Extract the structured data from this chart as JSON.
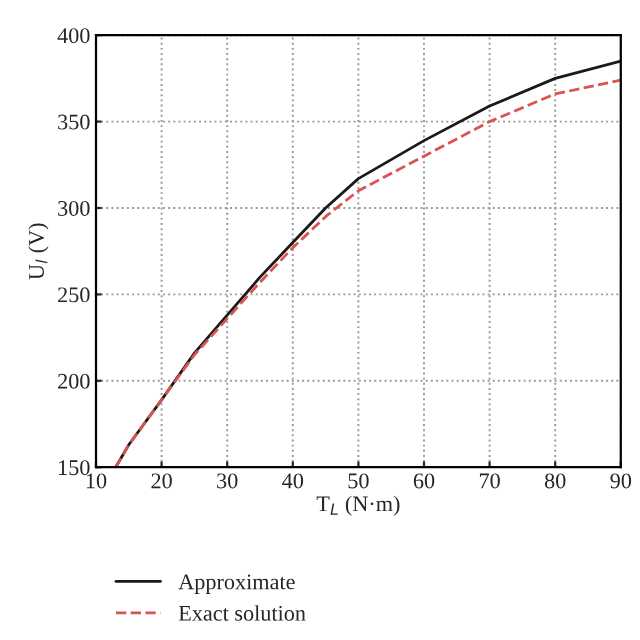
{
  "chart_data": {
    "type": "line",
    "xlabel": "T$_{L}$ (N·m)",
    "ylabel": "U$_{l}$ (V)",
    "xlim": [
      10,
      90
    ],
    "ylim": [
      150,
      400
    ],
    "xticks": [
      10,
      20,
      30,
      40,
      50,
      60,
      70,
      80,
      90
    ],
    "yticks": [
      150,
      200,
      250,
      300,
      350,
      400
    ],
    "grid": true,
    "legend": "bottom left",
    "series": [
      {
        "name": "Approximate",
        "color": "#1a1a1a",
        "line_style": "solid",
        "x": [
          13,
          15,
          20,
          25,
          30,
          35,
          40,
          45,
          50,
          60,
          70,
          80,
          90
        ],
        "values": [
          150,
          163,
          189,
          216,
          238,
          260,
          280,
          300,
          317,
          339,
          359,
          375,
          385
        ]
      },
      {
        "name": "Exact solution",
        "color": "#d9534f",
        "line_style": "dashed",
        "x": [
          13,
          15,
          20,
          25,
          30,
          35,
          40,
          45,
          50,
          60,
          70,
          80,
          90
        ],
        "values": [
          150,
          163,
          189,
          215,
          236,
          257,
          277,
          295,
          310,
          330,
          350,
          366,
          374
        ]
      }
    ]
  }
}
